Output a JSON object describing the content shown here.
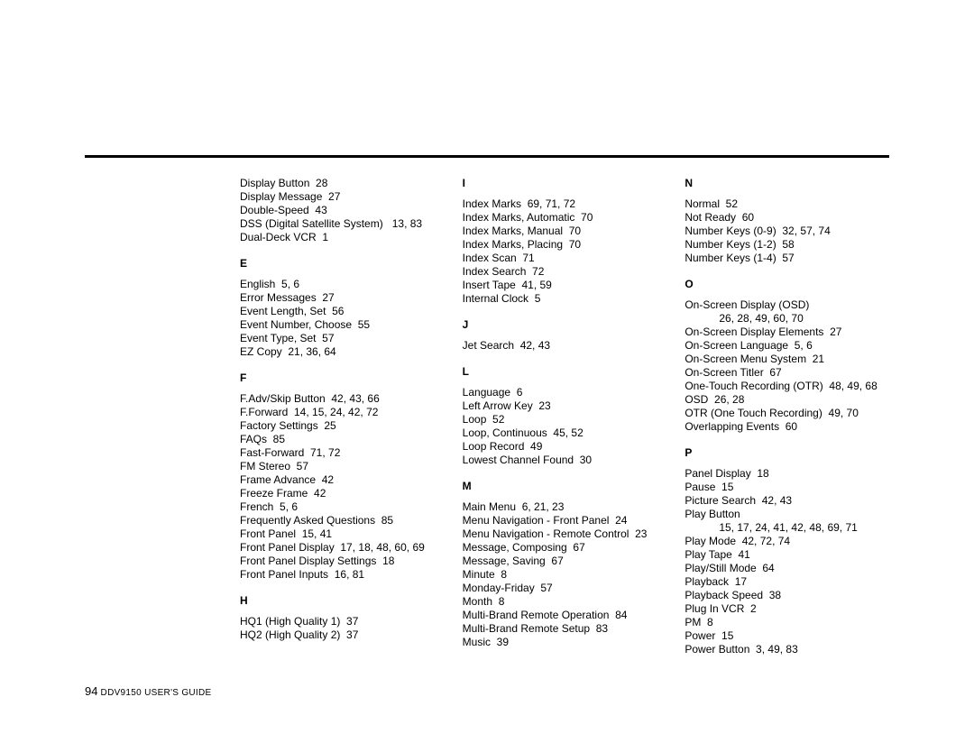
{
  "footer": {
    "page_number": "94",
    "guide": " DDV9150 USER'S GUIDE"
  },
  "columns": [
    {
      "pre_entries": [
        "Display Button  28",
        "Display Message  27",
        "Double-Speed  43",
        "DSS (Digital Satellite System)   13, 83",
        "Dual-Deck VCR  1"
      ],
      "sections": [
        {
          "letter": "E",
          "entries": [
            "English  5, 6",
            "Error Messages  27",
            "Event Length, Set  56",
            "Event Number, Choose  55",
            "Event Type, Set  57",
            "EZ Copy  21, 36, 64"
          ]
        },
        {
          "letter": "F",
          "entries": [
            "F.Adv/Skip Button  42, 43, 66",
            "F.Forward  14, 15, 24, 42, 72",
            "Factory Settings  25",
            "FAQs  85",
            "Fast-Forward  71, 72",
            "FM Stereo  57",
            "Frame Advance  42",
            "Freeze Frame  42",
            "French  5, 6",
            "Frequently Asked Questions  85",
            "Front Panel  15, 41",
            "Front Panel Display  17, 18, 48, 60, 69",
            "Front Panel Display Settings  18",
            "Front Panel Inputs  16, 81"
          ]
        },
        {
          "letter": "H",
          "entries": [
            "HQ1 (High Quality 1)  37",
            "HQ2 (High Quality 2)  37"
          ]
        }
      ]
    },
    {
      "pre_entries": [],
      "sections": [
        {
          "letter": "I",
          "entries": [
            "Index Marks  69, 71, 72",
            "Index Marks, Automatic  70",
            "Index Marks, Manual  70",
            "Index Marks, Placing  70",
            "Index Scan  71",
            "Index Search  72",
            "Insert Tape  41, 59",
            "Internal Clock  5"
          ]
        },
        {
          "letter": "J",
          "entries": [
            "Jet Search  42, 43"
          ]
        },
        {
          "letter": "L",
          "entries": [
            "Language  6",
            "Left Arrow Key  23",
            "Loop  52",
            "Loop, Continuous  45, 52",
            "Loop Record  49",
            "Lowest Channel Found  30"
          ]
        },
        {
          "letter": "M",
          "entries": [
            "Main Menu  6, 21, 23",
            "Menu Navigation - Front Panel  24",
            "Menu Navigation - Remote Control  23",
            "Message, Composing  67",
            "Message, Saving  67",
            "Minute  8",
            "Monday-Friday  57",
            "Month  8",
            "Multi-Brand Remote Operation  84",
            "Multi-Brand Remote Setup  83",
            "Music  39"
          ]
        }
      ]
    },
    {
      "pre_entries": [],
      "sections": [
        {
          "letter": "N",
          "entries": [
            "Normal  52",
            "Not Ready  60",
            "Number Keys (0-9)  32, 57, 74",
            "Number Keys (1-2)  58",
            "Number Keys (1-4)  57"
          ]
        },
        {
          "letter": "O",
          "entries": [
            {
              "text": "On-Screen Display (OSD)",
              "cont": "26, 28, 49, 60, 70"
            },
            "On-Screen Display Elements  27",
            "On-Screen Language  5, 6",
            "On-Screen Menu System  21",
            "On-Screen Titler  67",
            "One-Touch Recording (OTR)  48, 49, 68",
            "OSD  26, 28",
            "OTR (One Touch Recording)  49, 70",
            "Overlapping Events  60"
          ]
        },
        {
          "letter": "P",
          "entries": [
            "Panel Display  18",
            "Pause  15",
            "Picture Search  42, 43",
            {
              "text": "Play Button",
              "cont": "15, 17, 24, 41, 42, 48, 69, 71"
            },
            "Play Mode  42, 72, 74",
            "Play Tape  41",
            "Play/Still Mode  64",
            "Playback  17",
            "Playback Speed  38",
            "Plug In VCR  2",
            "PM  8",
            "Power  15",
            "Power Button  3, 49, 83"
          ]
        }
      ]
    }
  ]
}
